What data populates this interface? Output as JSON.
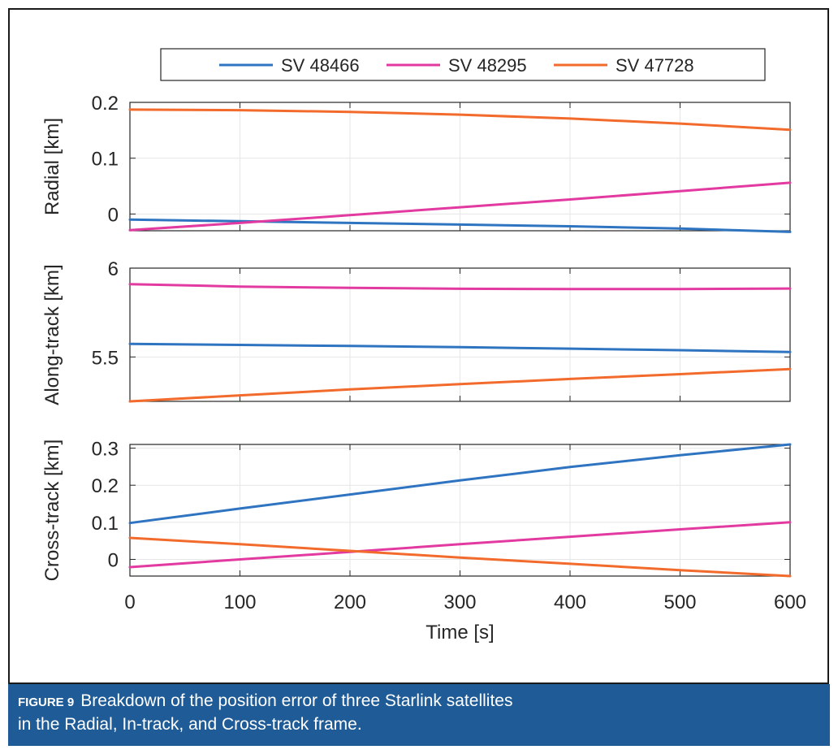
{
  "chart_data": {
    "type": "line",
    "xlabel": "Time [s]",
    "x_ticks": [
      "0",
      "100",
      "200",
      "300",
      "400",
      "500",
      "600"
    ],
    "xlim": [
      0,
      600
    ],
    "legend": {
      "placement": "top",
      "entries": [
        "SV 48466",
        "SV 48295",
        "SV 47728"
      ]
    },
    "colors": {
      "SV 48466": "#2f74c0",
      "SV 48295": "#e23aa0",
      "SV 47728": "#f26b2c"
    },
    "subplots": [
      {
        "ylabel": "Radial [km]",
        "ylim": [
          -0.03,
          0.2
        ],
        "y_ticks": [
          {
            "v": 0.2,
            "label": "0.2"
          },
          {
            "v": 0.1,
            "label": "0.1"
          },
          {
            "v": 0,
            "label": "0"
          }
        ],
        "series": [
          {
            "name": "SV 48466",
            "x": [
              0,
              100,
              200,
              300,
              400,
              500,
              600
            ],
            "values": [
              -0.01,
              -0.013,
              -0.016,
              -0.019,
              -0.022,
              -0.026,
              -0.032
            ]
          },
          {
            "name": "SV 48295",
            "x": [
              0,
              100,
              200,
              300,
              400,
              500,
              600
            ],
            "values": [
              -0.029,
              -0.016,
              -0.002,
              0.012,
              0.026,
              0.041,
              0.056
            ]
          },
          {
            "name": "SV 47728",
            "x": [
              0,
              100,
              200,
              300,
              400,
              500,
              600
            ],
            "values": [
              0.187,
              0.186,
              0.183,
              0.178,
              0.171,
              0.162,
              0.151
            ]
          }
        ]
      },
      {
        "ylabel": "Along-track [km]",
        "ylim": [
          5.25,
          6.0
        ],
        "y_ticks": [
          {
            "v": 6.0,
            "label": "6"
          },
          {
            "v": 5.5,
            "label": "5.5"
          }
        ],
        "series": [
          {
            "name": "SV 48466",
            "x": [
              0,
              100,
              200,
              300,
              400,
              500,
              600
            ],
            "values": [
              5.574,
              5.568,
              5.562,
              5.555,
              5.547,
              5.538,
              5.528
            ]
          },
          {
            "name": "SV 48295",
            "x": [
              0,
              100,
              200,
              300,
              400,
              500,
              600
            ],
            "values": [
              5.91,
              5.896,
              5.889,
              5.884,
              5.882,
              5.882,
              5.885
            ]
          },
          {
            "name": "SV 47728",
            "x": [
              0,
              100,
              200,
              300,
              400,
              500,
              600
            ],
            "values": [
              5.25,
              5.284,
              5.317,
              5.347,
              5.376,
              5.403,
              5.432
            ]
          }
        ]
      },
      {
        "ylabel": "Cross-track [km]",
        "ylim": [
          -0.045,
          0.31
        ],
        "y_ticks": [
          {
            "v": 0.3,
            "label": "0.3"
          },
          {
            "v": 0.2,
            "label": "0.2"
          },
          {
            "v": 0.1,
            "label": "0.1"
          },
          {
            "v": 0,
            "label": "0"
          }
        ],
        "series": [
          {
            "name": "SV 48466",
            "x": [
              0,
              100,
              200,
              300,
              400,
              500,
              600
            ],
            "values": [
              0.098,
              0.137,
              0.175,
              0.213,
              0.249,
              0.281,
              0.31
            ]
          },
          {
            "name": "SV 48295",
            "x": [
              0,
              100,
              200,
              300,
              400,
              500,
              600
            ],
            "values": [
              -0.021,
              0,
              0.02,
              0.041,
              0.061,
              0.081,
              0.1
            ]
          },
          {
            "name": "SV 47728",
            "x": [
              0,
              100,
              200,
              300,
              400,
              500,
              600
            ],
            "values": [
              0.058,
              0.041,
              0.023,
              0.005,
              -0.012,
              -0.029,
              -0.045
            ]
          }
        ]
      }
    ]
  },
  "caption": {
    "figure_label": "FIGURE 9",
    "line1": "Breakdown of the position error of three Starlink satellites",
    "line2": "in the Radial, In-track, and Cross-track frame."
  }
}
